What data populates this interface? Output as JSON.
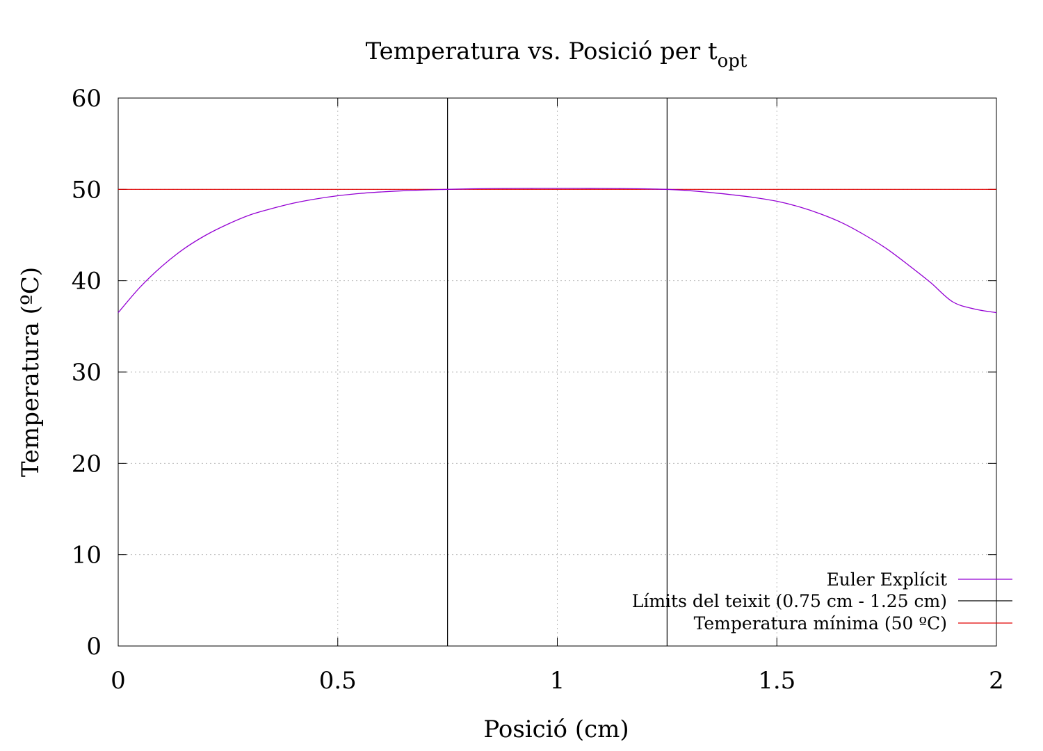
{
  "chart_data": {
    "type": "line",
    "title": "Temperatura vs. Posició per t",
    "title_subscript": "opt",
    "xlabel": "Posició (cm)",
    "ylabel": "Temperatura (ºC)",
    "xlim": [
      0,
      2
    ],
    "ylim": [
      0,
      60
    ],
    "xticks": [
      0,
      0.5,
      1,
      1.5,
      2
    ],
    "xtick_labels": [
      "0",
      "0.5",
      "1",
      "1.5",
      "2"
    ],
    "yticks": [
      0,
      10,
      20,
      30,
      40,
      50,
      60
    ],
    "ytick_labels": [
      "0",
      "10",
      "20",
      "30",
      "40",
      "50",
      "60"
    ],
    "grid": true,
    "legend_position": "bottom-right",
    "series": [
      {
        "name": "Euler Explícit",
        "color": "#9400d3",
        "x": [
          0,
          0.05,
          0.1,
          0.15,
          0.2,
          0.25,
          0.3,
          0.35,
          0.4,
          0.45,
          0.5,
          0.55,
          0.6,
          0.65,
          0.7,
          0.75,
          0.8,
          0.85,
          0.9,
          0.95,
          1.0,
          1.05,
          1.1,
          1.15,
          1.2,
          1.25,
          1.3,
          1.35,
          1.4,
          1.45,
          1.5,
          1.55,
          1.6,
          1.65,
          1.7,
          1.75,
          1.8,
          1.85,
          1.9,
          1.95,
          2.0
        ],
        "y": [
          36.5,
          39.3,
          41.6,
          43.5,
          45.0,
          46.2,
          47.2,
          47.9,
          48.5,
          48.95,
          49.3,
          49.55,
          49.72,
          49.85,
          49.94,
          50.0,
          50.06,
          50.1,
          50.12,
          50.13,
          50.13,
          50.13,
          50.12,
          50.1,
          50.06,
          50.0,
          49.86,
          49.65,
          49.4,
          49.1,
          48.7,
          48.1,
          47.3,
          46.3,
          45.0,
          43.5,
          41.7,
          39.8,
          37.7,
          36.9,
          36.5
        ]
      },
      {
        "name": "Límits del teixit (0.75 cm - 1.25 cm)",
        "color": "#000000",
        "vlines": [
          0.75,
          1.25
        ]
      },
      {
        "name": "Temperatura mínima (50 ºC)",
        "color": "#e00000",
        "hline": 50
      }
    ]
  }
}
